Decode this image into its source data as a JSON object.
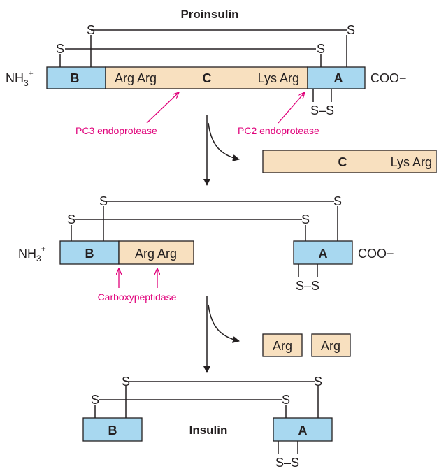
{
  "title": "Proinsulin",
  "product_label": "Insulin",
  "sulfur": "S",
  "disulfide": "S–S",
  "n_terminus": "NH",
  "n_terminus_sub": "3",
  "n_terminus_sup": "+",
  "c_terminus": "COO−",
  "chain_b": "B",
  "chain_a": "A",
  "chain_c": "C",
  "arg_arg": "Arg Arg",
  "lys_arg": "Lys Arg",
  "arg": "Arg",
  "enzymes": {
    "pc3": "PC3 endoprotease",
    "pc2": "PC2 endoprotease",
    "carboxypeptidase": "Carboxypeptidase"
  },
  "colors": {
    "chain_ab": "#a8d8f0",
    "c_peptide": "#f8e0bf",
    "enzyme": "#e0007a"
  }
}
